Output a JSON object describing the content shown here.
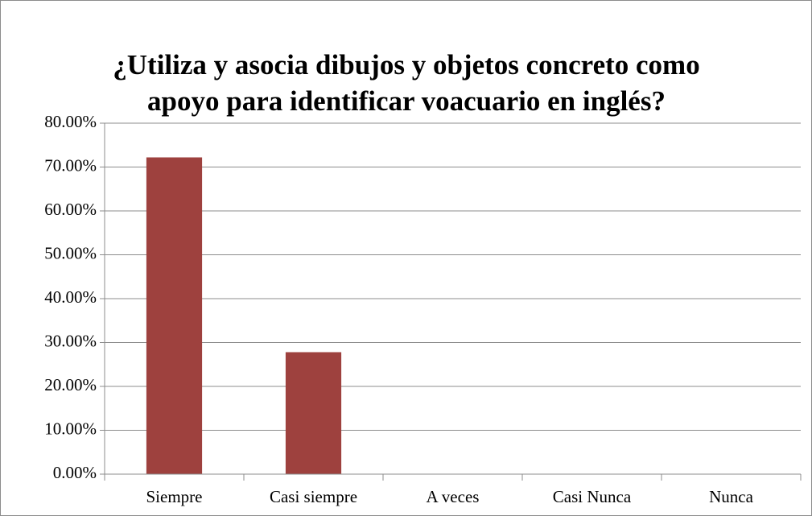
{
  "chart_data": {
    "type": "bar",
    "title": [
      "¿Utiliza y asocia dibujos y objetos concreto como",
      "apoyo para identificar voacuario en inglés?"
    ],
    "categories": [
      "Siempre",
      "Casi siempre",
      "A veces",
      "Casi Nunca",
      "Nunca"
    ],
    "values": [
      72.2,
      27.8,
      0,
      0,
      0
    ],
    "color": "#9e413e",
    "ylim": [
      0,
      80
    ],
    "yticks": [
      {
        "value": 0,
        "label": "0.00%"
      },
      {
        "value": 10,
        "label": "10.00%"
      },
      {
        "value": 20,
        "label": "20.00%"
      },
      {
        "value": 30,
        "label": "30.00%"
      },
      {
        "value": 40,
        "label": "40.00%"
      },
      {
        "value": 50,
        "label": "50.00%"
      },
      {
        "value": 60,
        "label": "60.00%"
      },
      {
        "value": 70,
        "label": "70.00%"
      },
      {
        "value": 80,
        "label": "80.00%"
      }
    ],
    "grid": true
  }
}
